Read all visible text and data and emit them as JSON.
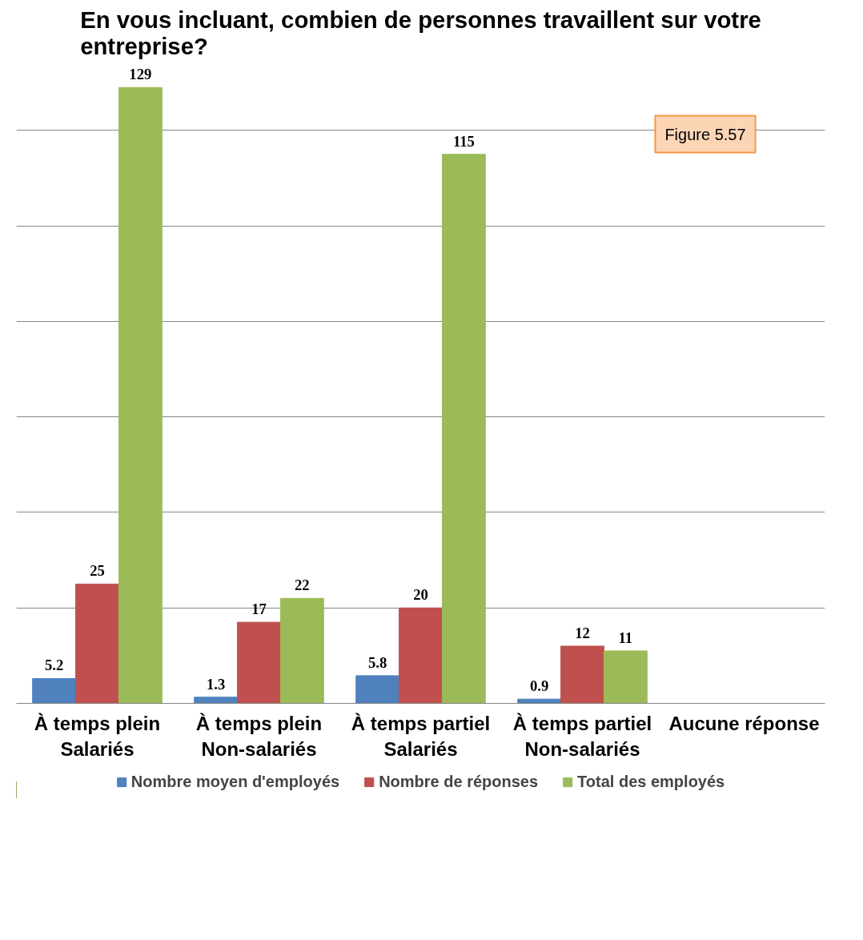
{
  "chart_data": {
    "type": "bar",
    "title": "En vous incluant, combien de personnes travaillent sur votre entreprise?",
    "categories": [
      "À temps plein Salariés",
      "À temps plein Non-salariés",
      "À temps partiel Salariés",
      "À temps partiel Non-salariés",
      "Aucune réponse"
    ],
    "series": [
      {
        "name": "Nombre moyen d'employés",
        "color": "#4f81bd",
        "values": [
          5.2,
          1.3,
          5.8,
          0.9,
          null
        ]
      },
      {
        "name": "Nombre de réponses",
        "color": "#c0504d",
        "values": [
          25,
          17,
          20,
          12,
          null
        ]
      },
      {
        "name": "Total des employés",
        "color": "#9bbb59",
        "values": [
          129,
          22,
          115,
          11,
          null
        ]
      }
    ],
    "grid": "y",
    "tick_labels": "x",
    "data_labels": true,
    "legend": "bottom",
    "annotations": [
      "Figure 5.57"
    ]
  }
}
